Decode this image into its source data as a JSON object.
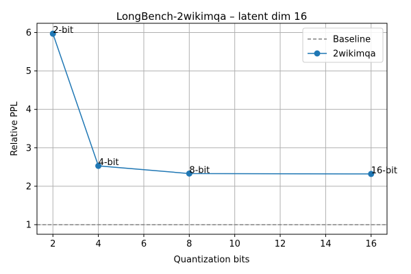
{
  "chart_data": {
    "type": "line",
    "title": "LongBench-2wikimqa – latent dim 16",
    "xlabel": "Quantization bits",
    "ylabel": "Relative PPL",
    "xlim": [
      1.3,
      16.7
    ],
    "ylim": [
      0.75,
      6.24
    ],
    "xticks": [
      2,
      4,
      6,
      8,
      10,
      12,
      14,
      16
    ],
    "yticks": [
      1,
      2,
      3,
      4,
      5,
      6
    ],
    "grid": true,
    "legend_position": "top-right",
    "baseline": {
      "name": "Baseline",
      "y": 1.0,
      "color": "#808080",
      "style": "dashed"
    },
    "series": [
      {
        "name": "2wikimqa",
        "color": "#1f77b4",
        "x": [
          2,
          4,
          8,
          16
        ],
        "y": [
          5.97,
          2.53,
          2.33,
          2.32
        ],
        "point_labels": [
          "2-bit",
          "4-bit",
          "8-bit",
          "16-bit"
        ]
      }
    ]
  }
}
